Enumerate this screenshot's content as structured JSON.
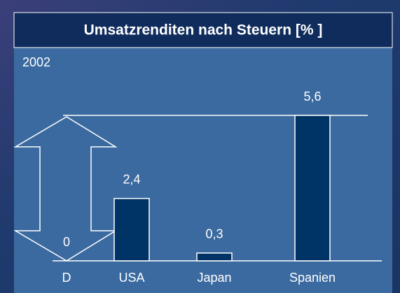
{
  "chart_data": {
    "type": "bar",
    "title": "Umsatzrenditen nach Steuern [% ]",
    "subtitle": "2002",
    "categories": [
      "D",
      "USA",
      "Japan",
      "Spanien"
    ],
    "values": [
      0,
      2.4,
      0.3,
      5.6
    ],
    "value_labels": [
      "0",
      "2,4",
      "0,3",
      "5,6"
    ],
    "color": "#003366"
  }
}
